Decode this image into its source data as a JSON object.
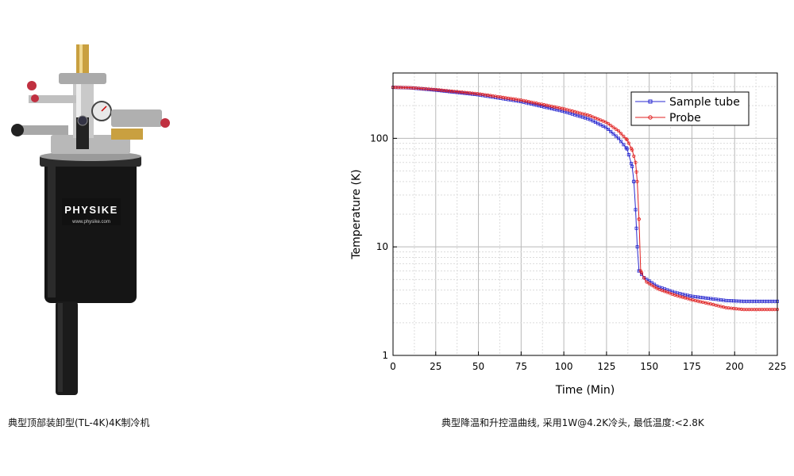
{
  "product": {
    "brand": "PHYSIKE",
    "url": "www.physike.com"
  },
  "captions": {
    "left": "典型顶部装卸型(TL-4K)4K制冷机",
    "right": "典型降温和升控温曲线, 采用1W@4.2K冷头, 最低温度:<2.8K"
  },
  "chart_data": {
    "type": "line",
    "title": "",
    "xlabel": "Time (Min)",
    "ylabel": "Temperature (K)",
    "xlim": [
      0,
      225
    ],
    "ylim": [
      1,
      400
    ],
    "yscale": "log",
    "grid": true,
    "legend_position": "top-right",
    "x_ticks": [
      0,
      25,
      50,
      75,
      100,
      125,
      150,
      175,
      200,
      225
    ],
    "y_ticks": [
      1,
      10,
      100
    ],
    "y_tick_labels": [
      "1",
      "10",
      "100"
    ],
    "series": [
      {
        "name": "Sample tube",
        "color": "#2a2ad0",
        "points": [
          [
            0,
            295
          ],
          [
            10,
            292
          ],
          [
            25,
            278
          ],
          [
            50,
            252
          ],
          [
            75,
            218
          ],
          [
            100,
            177
          ],
          [
            115,
            150
          ],
          [
            125,
            125
          ],
          [
            132,
            100
          ],
          [
            137,
            80
          ],
          [
            140,
            55
          ],
          [
            141,
            40
          ],
          [
            142,
            22
          ],
          [
            143,
            10
          ],
          [
            144,
            6
          ],
          [
            147,
            5.2
          ],
          [
            155,
            4.3
          ],
          [
            165,
            3.8
          ],
          [
            175,
            3.5
          ],
          [
            185,
            3.35
          ],
          [
            195,
            3.2
          ],
          [
            205,
            3.15
          ],
          [
            215,
            3.15
          ],
          [
            225,
            3.15
          ]
        ]
      },
      {
        "name": "Probe",
        "color": "#e02020",
        "points": [
          [
            0,
            295
          ],
          [
            10,
            293
          ],
          [
            25,
            281
          ],
          [
            50,
            257
          ],
          [
            75,
            225
          ],
          [
            100,
            187
          ],
          [
            115,
            162
          ],
          [
            125,
            140
          ],
          [
            132,
            117
          ],
          [
            137,
            97
          ],
          [
            140,
            78
          ],
          [
            142,
            60
          ],
          [
            143,
            40
          ],
          [
            144,
            18
          ],
          [
            145,
            6
          ],
          [
            148,
            4.8
          ],
          [
            155,
            4.1
          ],
          [
            165,
            3.6
          ],
          [
            175,
            3.25
          ],
          [
            185,
            3.0
          ],
          [
            195,
            2.75
          ],
          [
            205,
            2.65
          ],
          [
            215,
            2.65
          ],
          [
            225,
            2.65
          ]
        ]
      }
    ]
  }
}
